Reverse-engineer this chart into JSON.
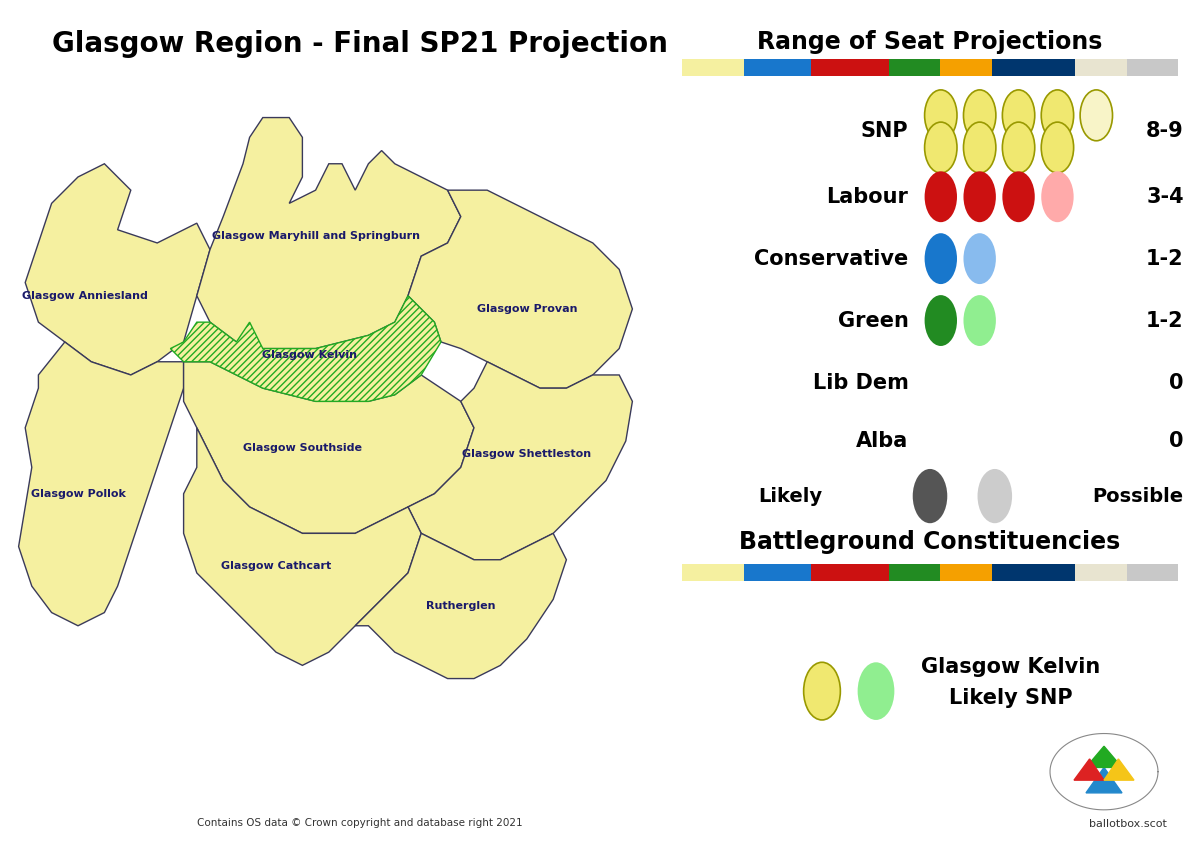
{
  "title": "Glasgow Region - Final SP21 Projection",
  "title_fontsize": 20,
  "title_fontweight": "bold",
  "background_color": "#ffffff",
  "map_fill_color": "#f5f0a0",
  "map_edge_color": "#3a3a5a",
  "kelvin_hatch_color": "#22aa22",
  "legend_title": "Range of Seat Projections",
  "legend_title_fontsize": 17,
  "legend_title_fontweight": "bold",
  "parties": [
    "SNP",
    "Labour",
    "Conservative",
    "Green",
    "Lib Dem",
    "Alba"
  ],
  "seat_ranges": [
    "8-9",
    "3-4",
    "1-2",
    "1-2",
    "0",
    "0"
  ],
  "color_bar_colors": [
    "#f5f0a0",
    "#1877cc",
    "#cc1111",
    "#228B22",
    "#f5a000",
    "#00366e",
    "#e8e4d0",
    "#c8c8c8"
  ],
  "battleground_title": "Battleground Constituencies",
  "battleground_title_fontsize": 17,
  "battleground_title_fontweight": "bold",
  "kelvin_label": "Glasgow Kelvin",
  "kelvin_sublabel": "Likely SNP",
  "kelvin_label_fontsize": 15,
  "kelvin_label_fontweight": "bold",
  "map_label_fontsize": 8,
  "map_label_color": "#1a1a6a",
  "copyright_text": "Contains OS data © Crown copyright and database right 2021",
  "ballotbox_text": "ballotbox.scot",
  "party_label_fontsize": 15,
  "party_label_fontweight": "bold",
  "seat_range_fontsize": 15,
  "seat_range_fontweight": "bold"
}
